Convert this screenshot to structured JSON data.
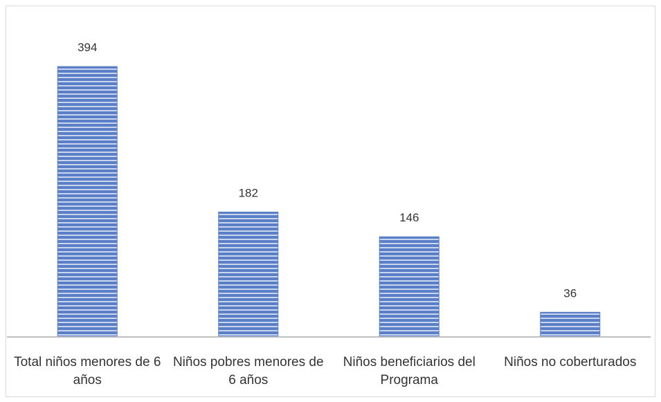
{
  "chart_data": {
    "type": "bar",
    "categories": [
      "Total niños menores de 6 años",
      "Niños pobres menores de 6 años",
      "Niños beneficiarios del Programa",
      "Niños no coberturados"
    ],
    "values": [
      394,
      182,
      146,
      36
    ],
    "color": "#5b7fc7"
  }
}
